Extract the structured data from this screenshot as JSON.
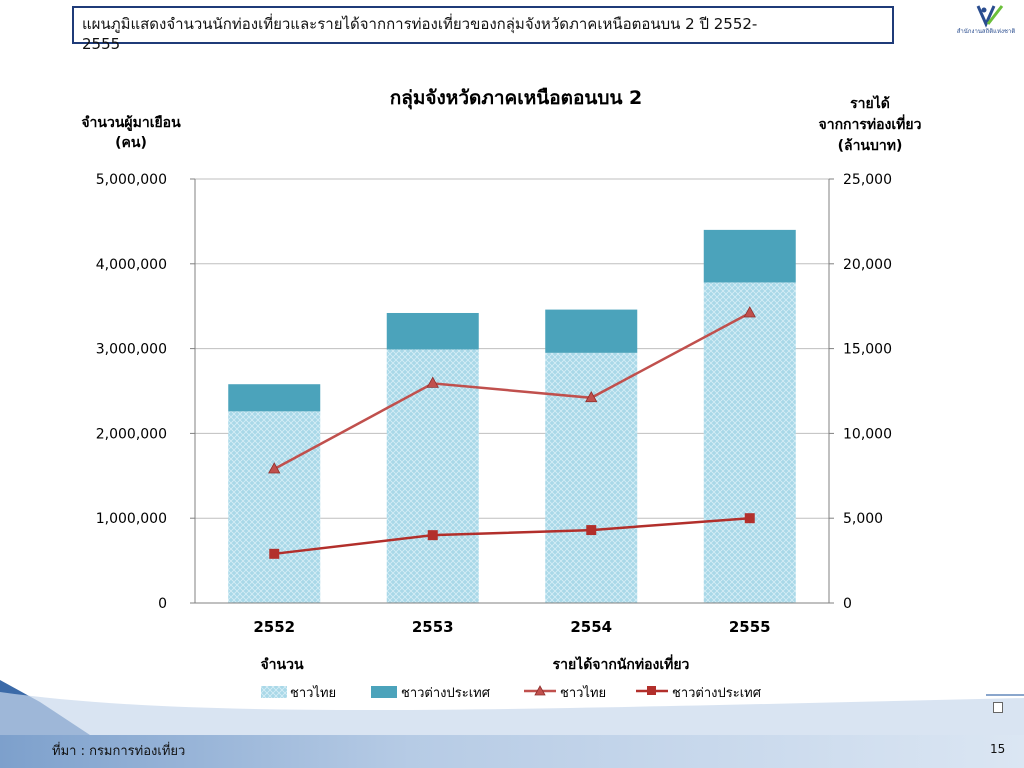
{
  "slide": {
    "title_line1": "แผนภูมิแสดงจำนวนนักท่องเที่ยวและรายได้จากการท่องเที่ยวของกลุ่มจังหวัดภาคเหนือตอนบน 2 ปี 2552-",
    "title_line2": "2555",
    "source": "ที่มา : กรมการท่องเที่ยว",
    "page_number": "15",
    "logo_text": "สำนักงานสถิติแห่งชาติ"
  },
  "colors": {
    "thai_bar": "#a9d8e8",
    "foreign_bar": "#4ba3bb",
    "thai_line": "#c0504d",
    "foreign_line": "#b22f2b",
    "grid": "#bfbfbf"
  },
  "chart_data": {
    "type": "bar",
    "stacked": true,
    "title": "กลุ่มจังหวัดภาคเหนือตอนบน 2",
    "ylabel_left_line1": "จำนวนผู้มาเยือน",
    "ylabel_left_line2": "(คน)",
    "ylabel_right_line1": "รายได้",
    "ylabel_right_line2": "จากการท่องเที่ยว",
    "ylabel_right_line3": "(ล้านบาท)",
    "ylim_left": [
      0,
      5000000
    ],
    "ylim_right": [
      0,
      25000
    ],
    "yticks_left": [
      "0",
      "1,000,000",
      "2,000,000",
      "3,000,000",
      "4,000,000",
      "5,000,000"
    ],
    "yticks_right": [
      "0",
      "5,000",
      "10,000",
      "15,000",
      "20,000",
      "25,000"
    ],
    "categories": [
      "2552",
      "2553",
      "2554",
      "2555"
    ],
    "bar_series": [
      {
        "name": "ชาวไทย",
        "values": [
          2260000,
          2990000,
          2950000,
          3780000
        ]
      },
      {
        "name": "ชาวต่างประเทศ",
        "values": [
          320000,
          430000,
          510000,
          620000
        ]
      }
    ],
    "line_series": [
      {
        "name": "ชาวไทย",
        "values": [
          7900,
          12950,
          12100,
          17100
        ],
        "marker": "triangle"
      },
      {
        "name": "ชาวต่างประเทศ",
        "values": [
          2900,
          4000,
          4300,
          5000
        ],
        "marker": "square"
      }
    ],
    "legend_group_bars": "จำนวน",
    "legend_group_lines": "รายได้จากนักท่องเที่ยว",
    "legend_position": "bottom",
    "grid": true
  }
}
